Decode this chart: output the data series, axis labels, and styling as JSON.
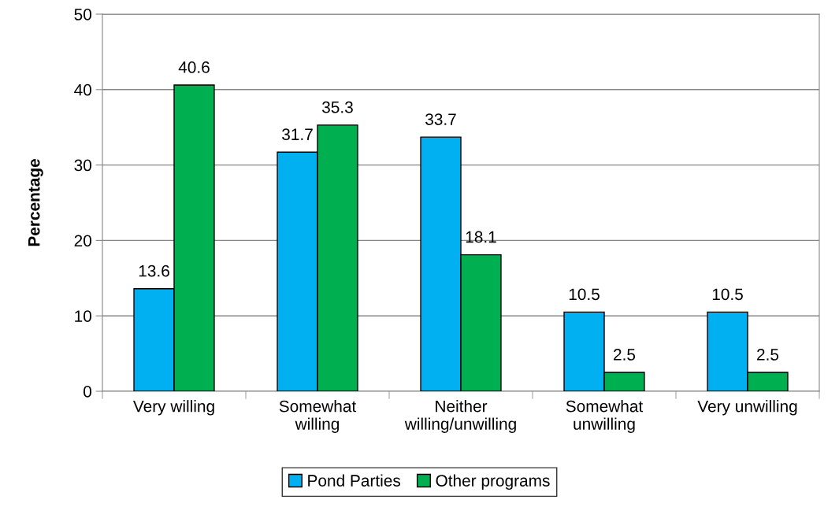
{
  "chart_data": {
    "type": "bar",
    "ylabel": "Percentage",
    "categories": [
      "Very willing",
      "Somewhat\nwilling",
      "Neither\nwilling/unwilling",
      "Somewhat\nunwilling",
      "Very unwilling"
    ],
    "series": [
      {
        "name": "Pond Parties",
        "color": "#00b0f0",
        "values": [
          13.6,
          31.7,
          33.7,
          10.5,
          10.5
        ]
      },
      {
        "name": "Other programs",
        "color": "#00b050",
        "values": [
          40.6,
          35.3,
          18.1,
          2.5,
          2.5
        ]
      }
    ],
    "ylim": [
      0,
      50
    ],
    "yticks": [
      0,
      10,
      20,
      30,
      40,
      50
    ],
    "grid": "y",
    "legend": "bottom",
    "data_labels": true
  }
}
